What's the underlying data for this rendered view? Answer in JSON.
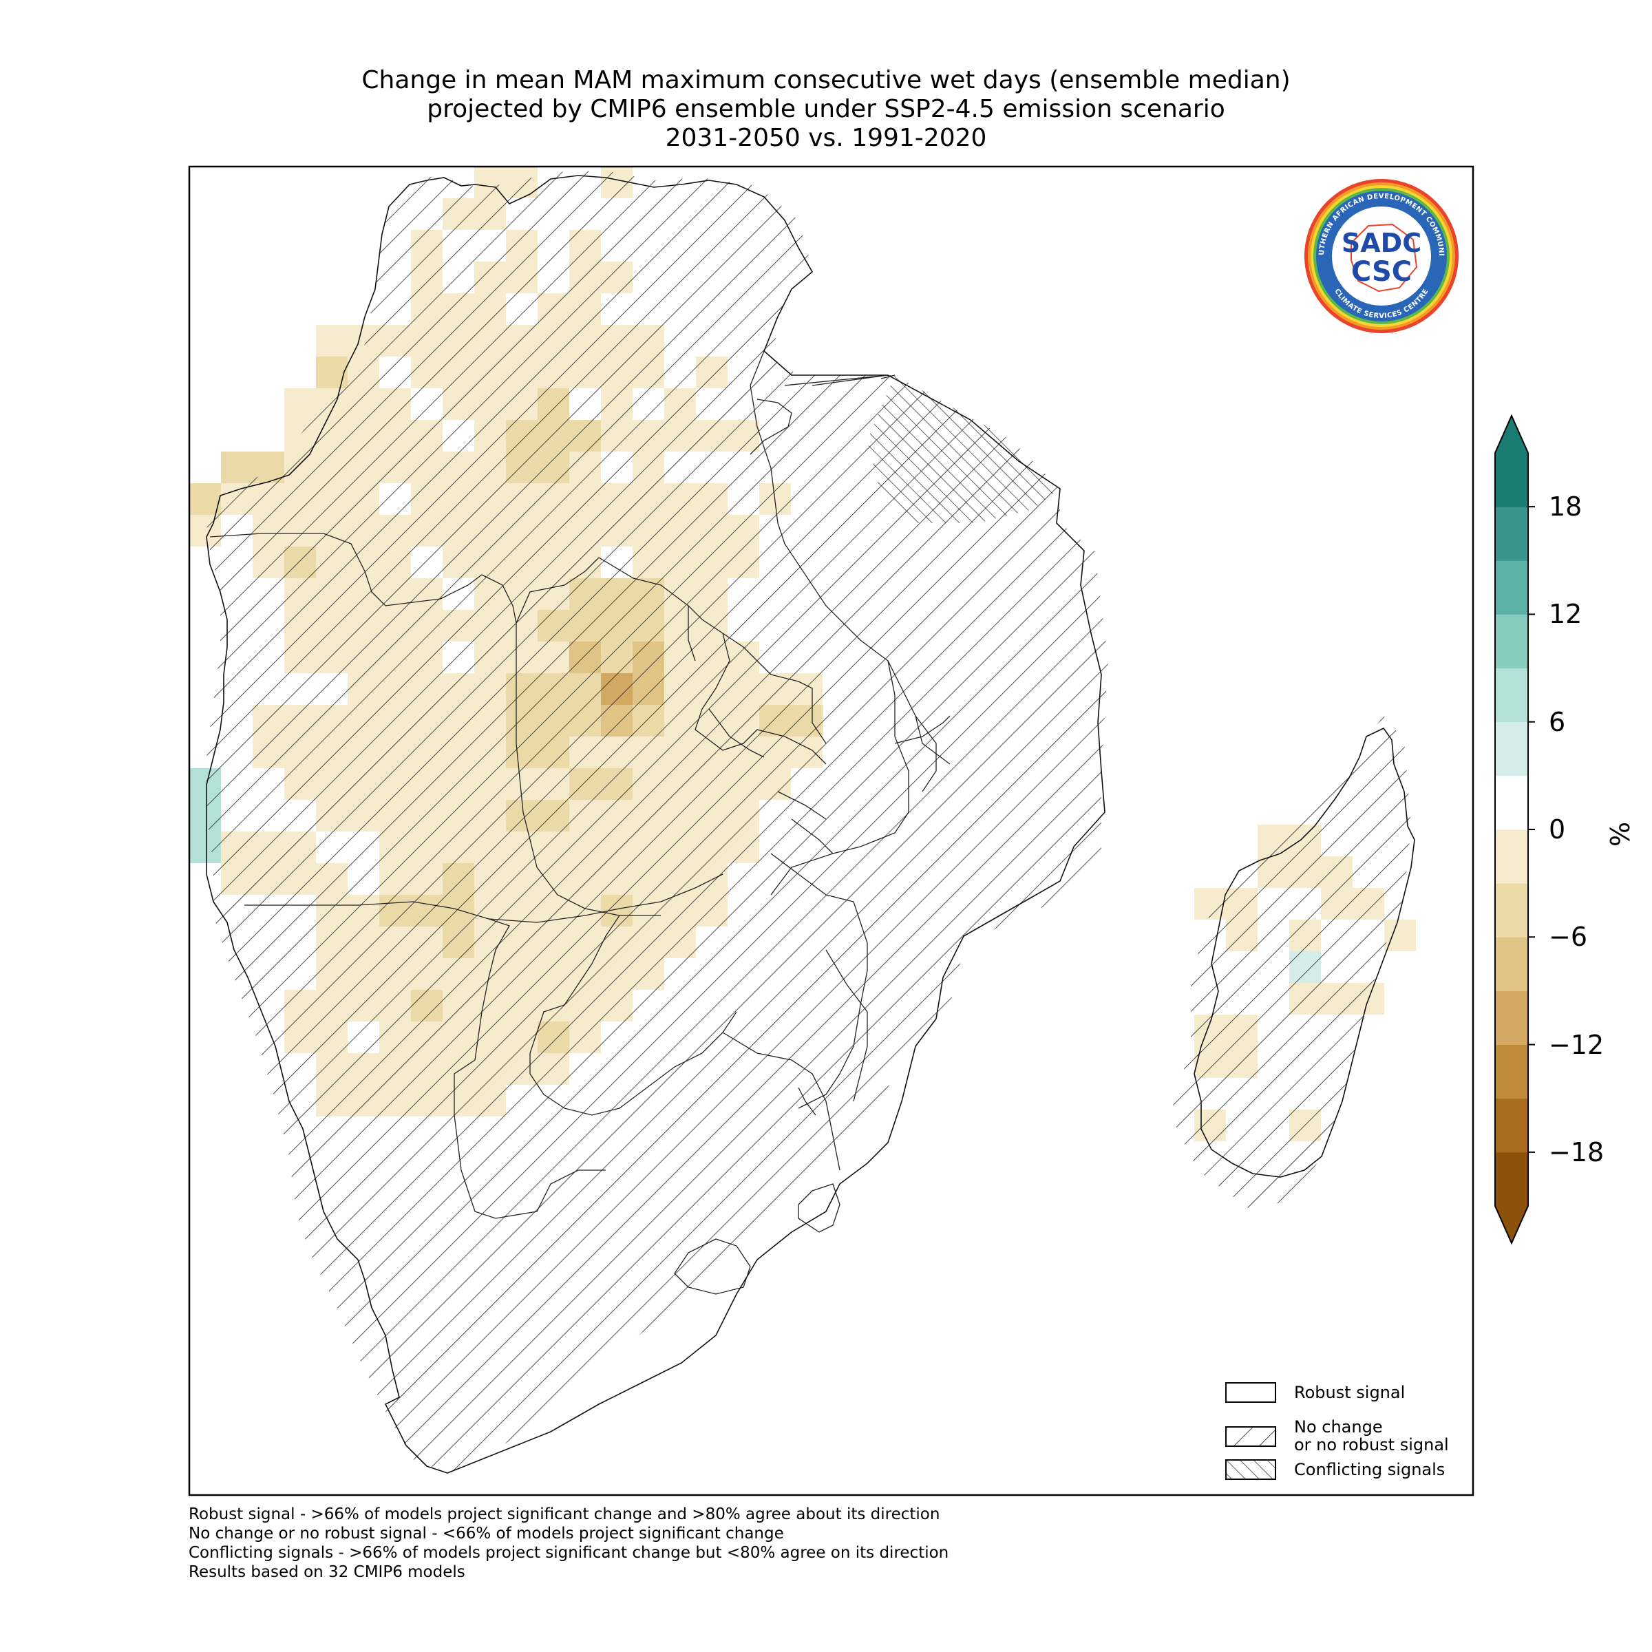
{
  "title_lines": [
    "Change in mean MAM maximum consecutive wet days (ensemble median)",
    "projected by CMIP6 ensemble under SSP2-4.5 emission scenario",
    "2031-2050 vs. 1991-2020"
  ],
  "colorbar": {
    "unit": "%",
    "ticks": [
      "18",
      "12",
      "6",
      "0",
      "−6",
      "−12",
      "−18"
    ],
    "colors": [
      "#8c510a",
      "#a86c1e",
      "#bf8a3a",
      "#d3a862",
      "#e0c486",
      "#ecd9a8",
      "#f6ebcc",
      "#ffffff",
      "#d5ede9",
      "#b3e1da",
      "#86cdbf",
      "#5bb2a5",
      "#3a968c",
      "#1a7b72"
    ],
    "extend_low": "#8c510a",
    "extend_high": "#1a7b72"
  },
  "logo": {
    "outer_text": "SOUTHERN AFRICAN DEVELOPMENT COMMUNITY",
    "inner_text_top": "SADC",
    "inner_text_bottom": "CSC",
    "ring_text_bottom": "CLIMATE SERVICES CENTRE"
  },
  "legend": {
    "items": [
      {
        "label_lines": [
          "Robust signal"
        ],
        "hatch": "none"
      },
      {
        "label_lines": [
          "No change",
          "or no robust signal"
        ],
        "hatch": "forward"
      },
      {
        "label_lines": [
          "Conflicting signals"
        ],
        "hatch": "back"
      }
    ]
  },
  "notes": [
    "Robust signal - >66% of models project significant change and >80% agree about its direction",
    "No change or no robust signal - <66% of models project significant change",
    "Conflicting signals - >66% of models project significant change but <80% agree on its direction",
    "Results based on 32 CMIP6 models"
  ]
}
